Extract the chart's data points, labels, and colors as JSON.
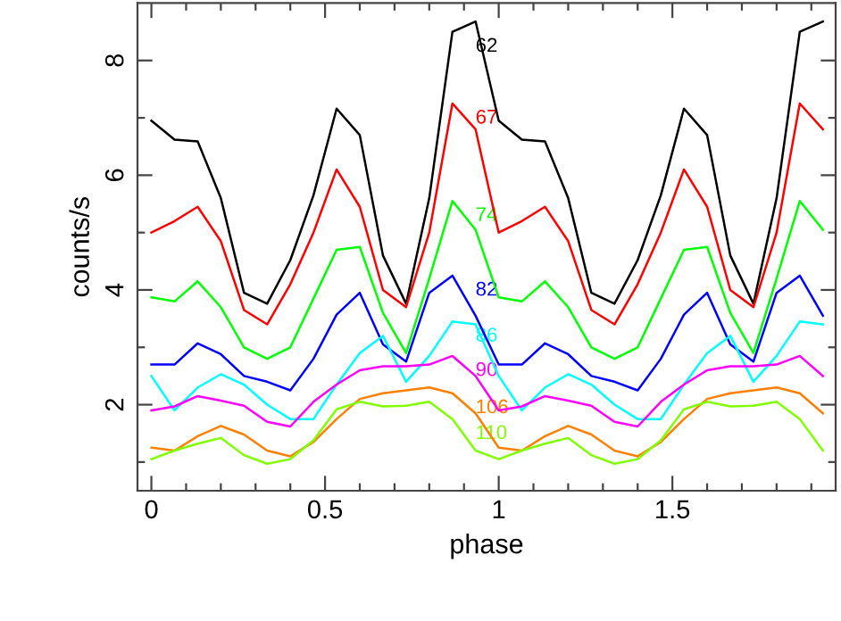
{
  "chart_data": {
    "type": "line",
    "xlabel": "phase",
    "ylabel": "counts/s",
    "x": [
      0,
      0.0667,
      0.1333,
      0.2,
      0.2667,
      0.3333,
      0.4,
      0.4667,
      0.5333,
      0.6,
      0.6667,
      0.7333,
      0.8,
      0.8667,
      0.9333,
      1,
      1.0667,
      1.1333,
      1.2,
      1.2667,
      1.3333,
      1.4,
      1.4667,
      1.5333,
      1.6,
      1.6667,
      1.7333,
      1.8,
      1.8667,
      1.9333
    ],
    "series": [
      {
        "name": "62",
        "color": "#000000",
        "values": [
          6.95,
          6.62,
          6.59,
          5.6,
          3.95,
          3.76,
          4.52,
          5.65,
          7.16,
          6.7,
          4.6,
          3.76,
          5.6,
          8.5,
          8.68,
          6.95,
          6.62,
          6.59,
          5.6,
          3.95,
          3.76,
          4.52,
          5.65,
          7.16,
          6.7,
          4.6,
          3.76,
          5.6,
          8.5,
          8.68
        ]
      },
      {
        "name": "67",
        "color": "#ff0000",
        "values": [
          5.0,
          5.2,
          5.45,
          4.85,
          3.65,
          3.4,
          4.1,
          5.0,
          6.1,
          5.45,
          4.0,
          3.7,
          5.0,
          7.25,
          6.8,
          5.0,
          5.2,
          5.45,
          4.85,
          3.65,
          3.4,
          4.1,
          5.0,
          6.1,
          5.45,
          4.0,
          3.7,
          5.0,
          7.25,
          6.8
        ]
      },
      {
        "name": "74",
        "color": "#00ff00",
        "values": [
          3.87,
          3.8,
          4.15,
          3.7,
          3.0,
          2.8,
          3.0,
          3.85,
          4.7,
          4.75,
          3.6,
          2.9,
          4.2,
          5.55,
          5.05,
          3.87,
          3.8,
          4.15,
          3.7,
          3.0,
          2.8,
          3.0,
          3.85,
          4.7,
          4.75,
          3.6,
          2.9,
          4.2,
          5.55,
          5.05
        ]
      },
      {
        "name": "82",
        "color": "#0000ff",
        "values": [
          2.7,
          2.7,
          3.07,
          2.88,
          2.5,
          2.4,
          2.25,
          2.8,
          3.57,
          3.95,
          3.05,
          2.75,
          3.95,
          4.25,
          3.55,
          2.7,
          2.7,
          3.07,
          2.88,
          2.5,
          2.4,
          2.25,
          2.8,
          3.57,
          3.95,
          3.05,
          2.75,
          3.95,
          4.25,
          3.55
        ]
      },
      {
        "name": "86",
        "color": "#00ffff",
        "values": [
          2.5,
          1.9,
          2.3,
          2.53,
          2.35,
          2.0,
          1.75,
          1.75,
          2.35,
          2.9,
          3.2,
          2.4,
          2.85,
          3.45,
          3.4,
          2.5,
          1.9,
          2.3,
          2.53,
          2.35,
          2.0,
          1.75,
          1.75,
          2.35,
          2.9,
          3.2,
          2.4,
          2.85,
          3.45,
          3.4
        ]
      },
      {
        "name": "90",
        "color": "#ff00ff",
        "values": [
          1.9,
          1.97,
          2.15,
          2.07,
          1.98,
          1.7,
          1.62,
          2.05,
          2.35,
          2.6,
          2.67,
          2.67,
          2.7,
          2.85,
          2.5,
          1.9,
          1.97,
          2.15,
          2.07,
          1.98,
          1.7,
          1.62,
          2.05,
          2.35,
          2.6,
          2.67,
          2.67,
          2.7,
          2.85,
          2.5
        ]
      },
      {
        "name": "106",
        "color": "#ff8000",
        "values": [
          1.25,
          1.2,
          1.45,
          1.63,
          1.48,
          1.2,
          1.1,
          1.35,
          1.75,
          2.1,
          2.2,
          2.25,
          2.3,
          2.2,
          1.85,
          1.25,
          1.2,
          1.45,
          1.63,
          1.48,
          1.2,
          1.1,
          1.35,
          1.75,
          2.1,
          2.2,
          2.25,
          2.3,
          2.2,
          1.85
        ]
      },
      {
        "name": "110",
        "color": "#80ff00",
        "values": [
          1.05,
          1.2,
          1.32,
          1.42,
          1.12,
          0.97,
          1.05,
          1.38,
          1.92,
          2.05,
          1.97,
          1.98,
          2.05,
          1.75,
          1.2,
          1.05,
          1.2,
          1.32,
          1.42,
          1.12,
          0.97,
          1.05,
          1.38,
          1.92,
          2.05,
          1.97,
          1.98,
          2.05,
          1.75,
          1.2
        ]
      }
    ],
    "xlim": [
      -0.04,
      1.97
    ],
    "ylim": [
      0.5,
      9.0
    ],
    "xticks": [
      0,
      {
        "value": 0.1,
        "label": null
      },
      {
        "value": 0.2,
        "label": null
      },
      {
        "value": 0.3,
        "label": null
      },
      {
        "value": 0.4,
        "label": null
      },
      0.5,
      {
        "value": 0.6,
        "label": null
      },
      {
        "value": 0.7,
        "label": null
      },
      {
        "value": 0.8,
        "label": null
      },
      {
        "value": 0.9,
        "label": null
      },
      1,
      {
        "value": 1.1,
        "label": null
      },
      {
        "value": 1.2,
        "label": null
      },
      {
        "value": 1.3,
        "label": null
      },
      {
        "value": 1.4,
        "label": null
      },
      1.5,
      {
        "value": 1.6,
        "label": null
      },
      {
        "value": 1.7,
        "label": null
      },
      {
        "value": 1.8,
        "label": null
      },
      {
        "value": 1.9,
        "label": null
      }
    ],
    "yticks": [
      {
        "value": 1,
        "label": null
      },
      2,
      {
        "value": 3,
        "label": null
      },
      4,
      {
        "value": 5,
        "label": null
      },
      6,
      {
        "value": 7,
        "label": null
      },
      8
    ],
    "grid": false,
    "legend": false,
    "marker": "none",
    "line_style": "solid"
  }
}
